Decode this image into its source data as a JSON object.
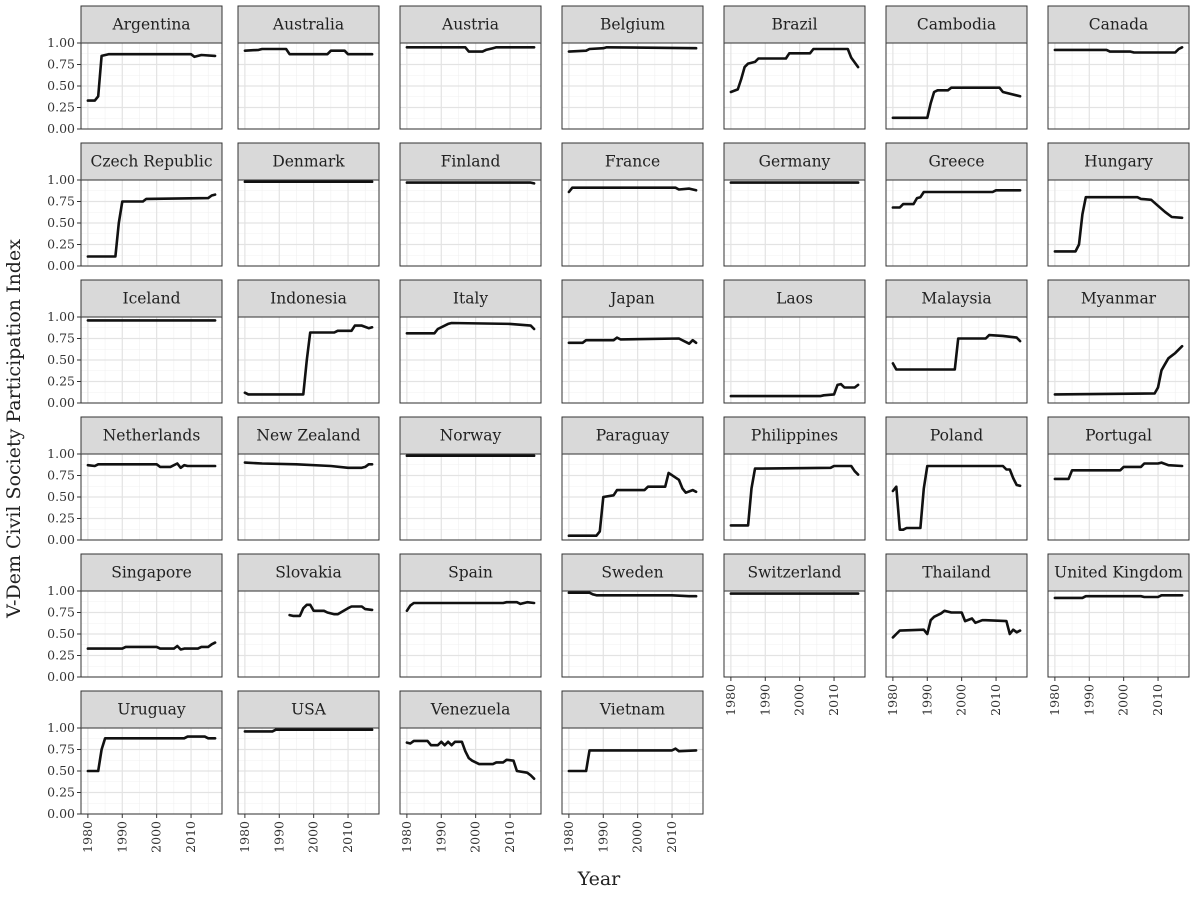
{
  "chart_data": {
    "type": "line",
    "xlabel": "Year",
    "ylabel": "V-Dem Civil Society Participation Index",
    "xlim": [
      1978,
      2019
    ],
    "ylim": [
      0,
      1
    ],
    "x_ticks": [
      1980,
      1990,
      2000,
      2010
    ],
    "x_tick_labels": [
      "1980",
      "1990",
      "2000",
      "2010"
    ],
    "y_ticks": [
      0,
      0.25,
      0.5,
      0.75,
      1
    ],
    "y_tick_labels": [
      "0.00",
      "0.25",
      "0.50",
      "0.75",
      "1.00"
    ],
    "grid": true,
    "line_color": "#111111",
    "strip_color": "#d9d9d9",
    "panels": [
      {
        "name": "Argentina",
        "x": [
          1980,
          1982,
          1983,
          1984,
          1986,
          2010,
          2011,
          2013,
          2017
        ],
        "y": [
          0.33,
          0.33,
          0.38,
          0.85,
          0.87,
          0.87,
          0.84,
          0.86,
          0.85
        ]
      },
      {
        "name": "Australia",
        "x": [
          1980,
          1984,
          1985,
          1992,
          1993,
          2004,
          2005,
          2009,
          2010,
          2017
        ],
        "y": [
          0.91,
          0.92,
          0.93,
          0.93,
          0.87,
          0.87,
          0.91,
          0.91,
          0.87,
          0.87
        ]
      },
      {
        "name": "Austria",
        "x": [
          1980,
          1997,
          1998,
          2002,
          2003,
          2005,
          2006,
          2017
        ],
        "y": [
          0.95,
          0.95,
          0.9,
          0.9,
          0.92,
          0.94,
          0.95,
          0.95
        ]
      },
      {
        "name": "Belgium",
        "x": [
          1980,
          1985,
          1986,
          1990,
          1991,
          2017
        ],
        "y": [
          0.9,
          0.91,
          0.93,
          0.94,
          0.95,
          0.94
        ]
      },
      {
        "name": "Brazil",
        "x": [
          1980,
          1982,
          1983,
          1984,
          1985,
          1987,
          1988,
          1996,
          1997,
          2003,
          2004,
          2014,
          2015,
          2017
        ],
        "y": [
          0.43,
          0.46,
          0.58,
          0.72,
          0.76,
          0.78,
          0.82,
          0.82,
          0.88,
          0.88,
          0.93,
          0.93,
          0.83,
          0.72
        ]
      },
      {
        "name": "Cambodia",
        "x": [
          1980,
          1990,
          1991,
          1992,
          1993,
          1996,
          1997,
          2011,
          2012,
          2017
        ],
        "y": [
          0.13,
          0.13,
          0.3,
          0.43,
          0.45,
          0.45,
          0.48,
          0.48,
          0.43,
          0.38
        ]
      },
      {
        "name": "Canada",
        "x": [
          1980,
          1995,
          1996,
          2002,
          2003,
          2015,
          2016,
          2017
        ],
        "y": [
          0.92,
          0.92,
          0.9,
          0.9,
          0.89,
          0.89,
          0.93,
          0.95
        ]
      },
      {
        "name": "Czech Republic",
        "x": [
          1980,
          1988,
          1989,
          1990,
          1996,
          1997,
          2015,
          2016,
          2017
        ],
        "y": [
          0.11,
          0.11,
          0.5,
          0.75,
          0.75,
          0.78,
          0.79,
          0.82,
          0.83
        ]
      },
      {
        "name": "Denmark",
        "x": [
          1980,
          2017
        ],
        "y": [
          0.98,
          0.98
        ]
      },
      {
        "name": "Finland",
        "x": [
          1980,
          2016,
          2017
        ],
        "y": [
          0.97,
          0.97,
          0.96
        ]
      },
      {
        "name": "France",
        "x": [
          1980,
          1981,
          2011,
          2012,
          2015,
          2017
        ],
        "y": [
          0.86,
          0.91,
          0.91,
          0.89,
          0.9,
          0.88
        ]
      },
      {
        "name": "Germany",
        "x": [
          1980,
          2017
        ],
        "y": [
          0.97,
          0.97
        ]
      },
      {
        "name": "Greece",
        "x": [
          1980,
          1982,
          1983,
          1986,
          1987,
          1988,
          1989,
          2009,
          2010,
          2017
        ],
        "y": [
          0.68,
          0.68,
          0.72,
          0.72,
          0.79,
          0.8,
          0.86,
          0.86,
          0.88,
          0.88
        ]
      },
      {
        "name": "Hungary",
        "x": [
          1980,
          1986,
          1987,
          1988,
          1989,
          2004,
          2005,
          2008,
          2010,
          2012,
          2014,
          2017
        ],
        "y": [
          0.17,
          0.17,
          0.25,
          0.6,
          0.8,
          0.8,
          0.78,
          0.77,
          0.7,
          0.63,
          0.57,
          0.56
        ]
      },
      {
        "name": "Iceland",
        "x": [
          1980,
          2017
        ],
        "y": [
          0.96,
          0.96
        ]
      },
      {
        "name": "Indonesia",
        "x": [
          1980,
          1981,
          1997,
          1998,
          1999,
          2006,
          2007,
          2011,
          2012,
          2014,
          2016,
          2017
        ],
        "y": [
          0.12,
          0.1,
          0.1,
          0.5,
          0.82,
          0.82,
          0.84,
          0.84,
          0.9,
          0.9,
          0.87,
          0.88
        ]
      },
      {
        "name": "Italy",
        "x": [
          1980,
          1988,
          1989,
          1992,
          1993,
          2010,
          2016,
          2017
        ],
        "y": [
          0.81,
          0.81,
          0.86,
          0.92,
          0.93,
          0.92,
          0.9,
          0.86
        ]
      },
      {
        "name": "Japan",
        "x": [
          1980,
          1984,
          1985,
          1993,
          1994,
          1995,
          2012,
          2015,
          2016,
          2017
        ],
        "y": [
          0.7,
          0.7,
          0.73,
          0.73,
          0.76,
          0.74,
          0.75,
          0.69,
          0.73,
          0.7
        ]
      },
      {
        "name": "Laos",
        "x": [
          1980,
          2006,
          2007,
          2010,
          2011,
          2012,
          2013,
          2016,
          2017
        ],
        "y": [
          0.08,
          0.08,
          0.09,
          0.1,
          0.21,
          0.22,
          0.18,
          0.18,
          0.21
        ]
      },
      {
        "name": "Malaysia",
        "x": [
          1980,
          1981,
          1998,
          1999,
          2007,
          2008,
          2012,
          2016,
          2017
        ],
        "y": [
          0.46,
          0.39,
          0.39,
          0.75,
          0.75,
          0.79,
          0.78,
          0.76,
          0.72
        ]
      },
      {
        "name": "Myanmar",
        "x": [
          1980,
          2009,
          2010,
          2011,
          2012,
          2013,
          2014,
          2015,
          2017
        ],
        "y": [
          0.1,
          0.11,
          0.18,
          0.38,
          0.45,
          0.52,
          0.55,
          0.58,
          0.66
        ]
      },
      {
        "name": "Netherlands",
        "x": [
          1980,
          1982,
          1983,
          1990,
          2000,
          2001,
          2004,
          2006,
          2007,
          2008,
          2009,
          2017
        ],
        "y": [
          0.87,
          0.86,
          0.88,
          0.88,
          0.88,
          0.85,
          0.85,
          0.89,
          0.84,
          0.87,
          0.86,
          0.86
        ]
      },
      {
        "name": "New Zealand",
        "x": [
          1980,
          1985,
          1995,
          2005,
          2010,
          2014,
          2015,
          2016,
          2017
        ],
        "y": [
          0.9,
          0.89,
          0.88,
          0.86,
          0.84,
          0.84,
          0.85,
          0.88,
          0.88
        ]
      },
      {
        "name": "Norway",
        "x": [
          1980,
          2017
        ],
        "y": [
          0.98,
          0.98
        ]
      },
      {
        "name": "Paraguay",
        "x": [
          1980,
          1988,
          1989,
          1990,
          1993,
          1994,
          2002,
          2003,
          2008,
          2009,
          2012,
          2013,
          2014,
          2016,
          2017
        ],
        "y": [
          0.05,
          0.05,
          0.1,
          0.5,
          0.52,
          0.58,
          0.58,
          0.62,
          0.62,
          0.78,
          0.7,
          0.6,
          0.55,
          0.58,
          0.56
        ]
      },
      {
        "name": "Philippines",
        "x": [
          1980,
          1985,
          1986,
          1987,
          2009,
          2010,
          2015,
          2016,
          2017
        ],
        "y": [
          0.17,
          0.17,
          0.6,
          0.83,
          0.84,
          0.86,
          0.86,
          0.8,
          0.76
        ]
      },
      {
        "name": "Poland",
        "x": [
          1980,
          1981,
          1982,
          1983,
          1984,
          1988,
          1989,
          1990,
          1991,
          2012,
          2013,
          2014,
          2015,
          2016,
          2017
        ],
        "y": [
          0.57,
          0.62,
          0.12,
          0.12,
          0.14,
          0.14,
          0.6,
          0.86,
          0.86,
          0.86,
          0.82,
          0.82,
          0.72,
          0.64,
          0.63
        ]
      },
      {
        "name": "Portugal",
        "x": [
          1980,
          1984,
          1985,
          1999,
          2000,
          2005,
          2006,
          2010,
          2011,
          2013,
          2017
        ],
        "y": [
          0.71,
          0.71,
          0.81,
          0.81,
          0.85,
          0.85,
          0.89,
          0.89,
          0.9,
          0.87,
          0.86
        ]
      },
      {
        "name": "Singapore",
        "x": [
          1980,
          1990,
          1991,
          2000,
          2001,
          2005,
          2006,
          2007,
          2008,
          2012,
          2013,
          2015,
          2016,
          2017
        ],
        "y": [
          0.33,
          0.33,
          0.35,
          0.35,
          0.33,
          0.33,
          0.36,
          0.32,
          0.33,
          0.33,
          0.35,
          0.35,
          0.38,
          0.4
        ]
      },
      {
        "name": "Slovakia",
        "x": [
          1993,
          1994,
          1996,
          1997,
          1998,
          1999,
          2000,
          2003,
          2004,
          2006,
          2007,
          2010,
          2011,
          2014,
          2015,
          2017
        ],
        "y": [
          0.72,
          0.71,
          0.71,
          0.8,
          0.84,
          0.84,
          0.77,
          0.77,
          0.75,
          0.73,
          0.73,
          0.8,
          0.82,
          0.82,
          0.79,
          0.78
        ]
      },
      {
        "name": "Spain",
        "x": [
          1980,
          1981,
          1982,
          2008,
          2009,
          2012,
          2013,
          2015,
          2017
        ],
        "y": [
          0.77,
          0.83,
          0.86,
          0.86,
          0.87,
          0.87,
          0.85,
          0.87,
          0.86
        ]
      },
      {
        "name": "Sweden",
        "x": [
          1980,
          1986,
          1987,
          1988,
          2010,
          2015,
          2017
        ],
        "y": [
          0.98,
          0.98,
          0.96,
          0.95,
          0.95,
          0.94,
          0.94
        ]
      },
      {
        "name": "Switzerland",
        "x": [
          1980,
          2017
        ],
        "y": [
          0.97,
          0.97
        ]
      },
      {
        "name": "Thailand",
        "x": [
          1980,
          1981,
          1982,
          1989,
          1990,
          1991,
          1992,
          1994,
          1995,
          1996,
          1997,
          2000,
          2001,
          2003,
          2004,
          2006,
          2007,
          2013,
          2014,
          2015,
          2016,
          2017
        ],
        "y": [
          0.46,
          0.5,
          0.54,
          0.55,
          0.5,
          0.66,
          0.7,
          0.74,
          0.77,
          0.76,
          0.75,
          0.75,
          0.65,
          0.68,
          0.63,
          0.66,
          0.66,
          0.65,
          0.5,
          0.55,
          0.52,
          0.54
        ]
      },
      {
        "name": "United Kingdom",
        "x": [
          1980,
          1988,
          1989,
          2005,
          2006,
          2010,
          2011,
          2017
        ],
        "y": [
          0.92,
          0.92,
          0.94,
          0.94,
          0.93,
          0.93,
          0.95,
          0.95
        ]
      },
      {
        "name": "Uruguay",
        "x": [
          1980,
          1983,
          1984,
          1985,
          2008,
          2009,
          2014,
          2015,
          2017
        ],
        "y": [
          0.5,
          0.5,
          0.75,
          0.88,
          0.88,
          0.9,
          0.9,
          0.88,
          0.88
        ]
      },
      {
        "name": "USA",
        "x": [
          1980,
          1988,
          1989,
          2017
        ],
        "y": [
          0.96,
          0.96,
          0.98,
          0.98
        ]
      },
      {
        "name": "Venezuela",
        "x": [
          1980,
          1981,
          1982,
          1986,
          1987,
          1989,
          1990,
          1991,
          1992,
          1993,
          1994,
          1996,
          1997,
          1998,
          1999,
          2001,
          2005,
          2006,
          2008,
          2009,
          2011,
          2012,
          2015,
          2016,
          2017
        ],
        "y": [
          0.83,
          0.82,
          0.85,
          0.85,
          0.8,
          0.8,
          0.84,
          0.8,
          0.84,
          0.8,
          0.84,
          0.84,
          0.73,
          0.65,
          0.62,
          0.58,
          0.58,
          0.6,
          0.6,
          0.63,
          0.62,
          0.5,
          0.48,
          0.45,
          0.41
        ]
      },
      {
        "name": "Vietnam",
        "x": [
          1980,
          1985,
          1986,
          1987,
          2010,
          2011,
          2012,
          2017
        ],
        "y": [
          0.5,
          0.5,
          0.74,
          0.74,
          0.74,
          0.76,
          0.73,
          0.74
        ]
      }
    ]
  }
}
